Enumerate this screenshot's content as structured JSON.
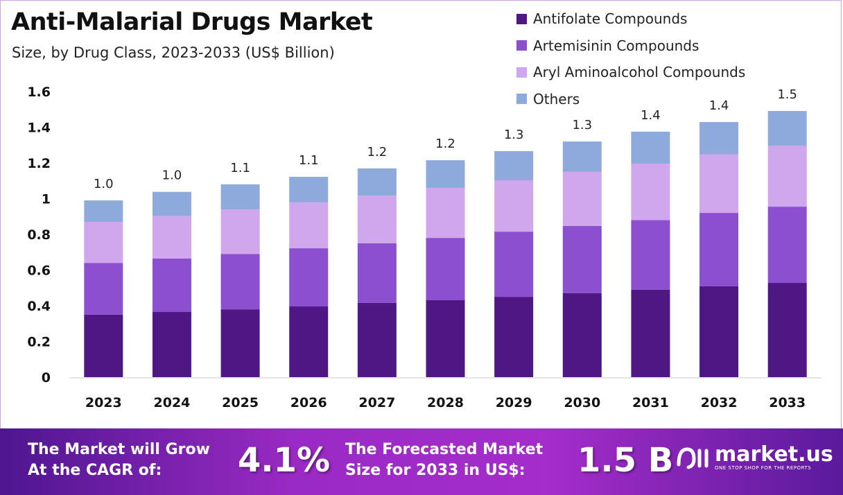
{
  "chart_data": {
    "type": "bar",
    "stacked": true,
    "title": "Anti-Malarial Drugs Market",
    "subtitle": "Size, by Drug Class, 2023-2033 (US$ Billion)",
    "categories": [
      "2023",
      "2024",
      "2025",
      "2026",
      "2027",
      "2028",
      "2029",
      "2030",
      "2031",
      "2032",
      "2033"
    ],
    "series": [
      {
        "name": "Antifolate Compounds",
        "color": "#4f1783",
        "values": [
          0.35,
          0.365,
          0.38,
          0.396,
          0.416,
          0.431,
          0.45,
          0.47,
          0.49,
          0.509,
          0.528
        ]
      },
      {
        "name": "Artemisinin Compounds",
        "color": "#8b4fcf",
        "values": [
          0.29,
          0.3,
          0.31,
          0.326,
          0.334,
          0.349,
          0.365,
          0.377,
          0.39,
          0.411,
          0.427
        ]
      },
      {
        "name": "Aryl Aminoalcohol Compounds",
        "color": "#d0a6ec",
        "values": [
          0.23,
          0.237,
          0.25,
          0.257,
          0.267,
          0.28,
          0.288,
          0.303,
          0.316,
          0.327,
          0.342
        ]
      },
      {
        "name": "Others",
        "color": "#8eaadc",
        "values": [
          0.12,
          0.136,
          0.14,
          0.143,
          0.152,
          0.155,
          0.163,
          0.17,
          0.179,
          0.182,
          0.194
        ]
      }
    ],
    "totals_labels": [
      "1.0",
      "1.0",
      "1.1",
      "1.1",
      "1.2",
      "1.2",
      "1.3",
      "1.3",
      "1.4",
      "1.4",
      "1.5"
    ],
    "ylim": [
      0,
      1.6
    ],
    "yticks": [
      "0",
      "0.2",
      "0.4",
      "0.6",
      "0.8",
      "1",
      "1.2",
      "1.4",
      "1.6"
    ],
    "grid": false,
    "legend_position": "top-right"
  },
  "banner": {
    "cagr_text_1": "The Market will Grow",
    "cagr_text_2": "At the CAGR of:",
    "cagr_value": "4.1%",
    "forecast_text_1": "The Forecasted Market",
    "forecast_text_2": "Size for 2033 in US$:",
    "forecast_value": "1.5 B",
    "logo_text": "market.us",
    "logo_tagline": "ONE STOP SHOP FOR THE REPORTS"
  }
}
